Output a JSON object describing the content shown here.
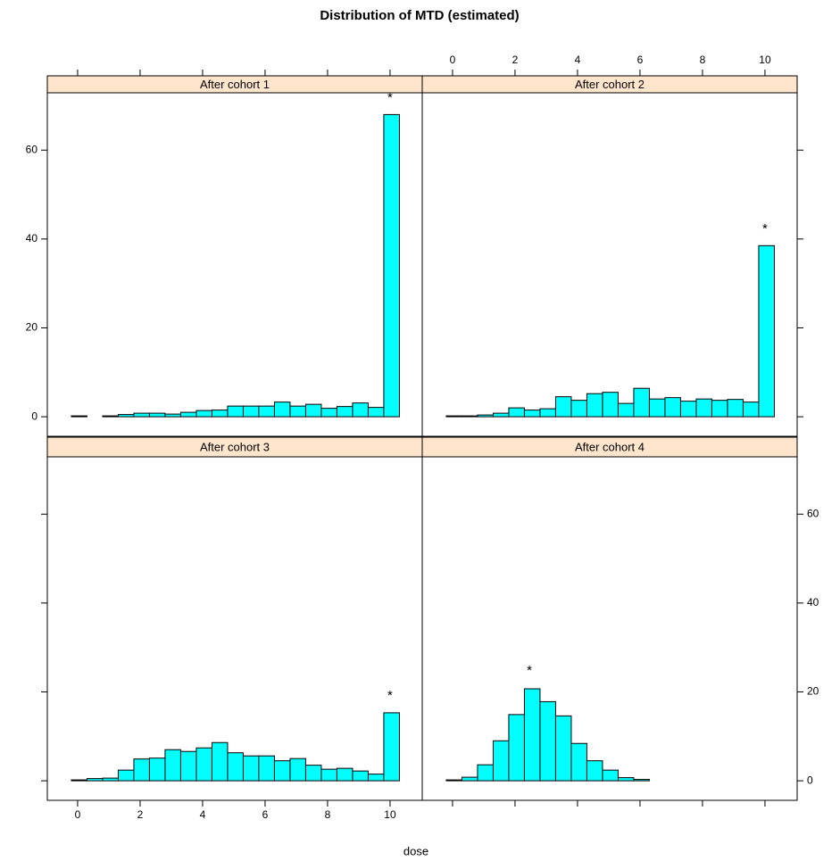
{
  "title": "Distribution of MTD (estimated)",
  "x_label": "dose",
  "chart_data": [
    {
      "type": "histogram",
      "title": "After cohort 1",
      "color": "#00ffff",
      "strip_color": "#ffe5cc",
      "bins": [
        -0.2,
        0.3,
        0.8,
        1.3,
        1.8,
        2.3,
        2.8,
        3.3,
        3.8,
        4.3,
        4.8,
        5.3,
        5.8,
        6.3,
        6.8,
        7.3,
        7.8,
        8.3,
        8.8,
        9.3,
        9.8,
        10.3
      ],
      "values": [
        0.2,
        0,
        0.2,
        0.5,
        0.8,
        0.8,
        0.6,
        1.0,
        1.4,
        1.5,
        2.4,
        2.4,
        2.4,
        3.3,
        2.4,
        2.8,
        1.9,
        2.3,
        3.1,
        2.1,
        68
      ],
      "xlim": [
        -0.97,
        11.03
      ],
      "ylim": [
        -4.4,
        72.9
      ],
      "xticks": [
        0,
        2,
        4,
        6,
        8,
        10
      ],
      "yticks": [
        0,
        20,
        40,
        60
      ],
      "xaxis": "top",
      "xtick_labels": false,
      "yaxis": "left",
      "ytick_labels": true,
      "annotation": {
        "text": "*",
        "x": 10,
        "y": 72.5,
        "color": "#ff0000"
      }
    },
    {
      "type": "histogram",
      "title": "After cohort 2",
      "color": "#00ffff",
      "strip_color": "#ffe5cc",
      "bins": [
        -0.2,
        0.3,
        0.8,
        1.3,
        1.8,
        2.3,
        2.8,
        3.3,
        3.8,
        4.3,
        4.8,
        5.3,
        5.8,
        6.3,
        6.8,
        7.3,
        7.8,
        8.3,
        8.8,
        9.3,
        9.8,
        10.3
      ],
      "values": [
        0.2,
        0.2,
        0.4,
        0.8,
        2.0,
        1.5,
        1.8,
        4.5,
        3.7,
        5.2,
        5.5,
        3.0,
        6.4,
        4.0,
        4.3,
        3.5,
        4.0,
        3.7,
        3.9,
        3.3,
        38.5
      ],
      "xlim": [
        -0.97,
        11.03
      ],
      "ylim": [
        -4.4,
        72.9
      ],
      "xticks": [
        0,
        2,
        4,
        6,
        8,
        10
      ],
      "yticks": [
        0,
        20,
        40,
        60
      ],
      "xaxis": "top",
      "xtick_labels": true,
      "yaxis": "right",
      "ytick_labels": false,
      "annotation": {
        "text": "*",
        "x": 10,
        "y": 43,
        "color": "#ff0000"
      }
    },
    {
      "type": "histogram",
      "title": "After cohort 3",
      "color": "#00ffff",
      "strip_color": "#ffe5cc",
      "bins": [
        -0.2,
        0.3,
        0.8,
        1.3,
        1.8,
        2.3,
        2.8,
        3.3,
        3.8,
        4.3,
        4.8,
        5.3,
        5.8,
        6.3,
        6.8,
        7.3,
        7.8,
        8.3,
        8.8,
        9.3,
        9.8,
        10.3
      ],
      "values": [
        0.2,
        0.5,
        0.6,
        2.4,
        4.9,
        5.1,
        7.0,
        6.6,
        7.4,
        8.6,
        6.3,
        5.6,
        5.6,
        4.5,
        5.0,
        3.5,
        2.6,
        2.8,
        2.2,
        1.5,
        15.3
      ],
      "xlim": [
        -0.97,
        11.03
      ],
      "ylim": [
        -4.4,
        72.9
      ],
      "xticks": [
        0,
        2,
        4,
        6,
        8,
        10
      ],
      "yticks": [
        0,
        20,
        40,
        60
      ],
      "xaxis": "bottom",
      "xtick_labels": true,
      "yaxis": "left",
      "ytick_labels": false,
      "annotation": {
        "text": "*",
        "x": 10,
        "y": 19.9,
        "color": "#ff0000"
      }
    },
    {
      "type": "histogram",
      "title": "After cohort 4",
      "color": "#00ffff",
      "strip_color": "#ffe5cc",
      "bins": [
        -0.2,
        0.3,
        0.8,
        1.3,
        1.8,
        2.3,
        2.8,
        3.3,
        3.8,
        4.3,
        4.8,
        5.3,
        5.8,
        6.3,
        6.8,
        7.3,
        7.8,
        8.3,
        8.8,
        9.3,
        9.8,
        10.3
      ],
      "values": [
        0.2,
        0.8,
        3.6,
        9.0,
        14.9,
        20.7,
        17.8,
        14.6,
        8.4,
        4.5,
        2.4,
        0.7,
        0.3,
        0,
        0,
        0,
        0,
        0,
        0,
        0,
        0
      ],
      "xlim": [
        -0.97,
        11.03
      ],
      "ylim": [
        -4.4,
        72.9
      ],
      "xticks": [
        0,
        2,
        4,
        6,
        8,
        10
      ],
      "yticks": [
        0,
        20,
        40,
        60
      ],
      "xaxis": "bottom",
      "xtick_labels": false,
      "yaxis": "right",
      "ytick_labels": true,
      "annotation": {
        "text": "*",
        "x": 2.46,
        "y": 25.5,
        "color": "#ff0000"
      }
    }
  ]
}
